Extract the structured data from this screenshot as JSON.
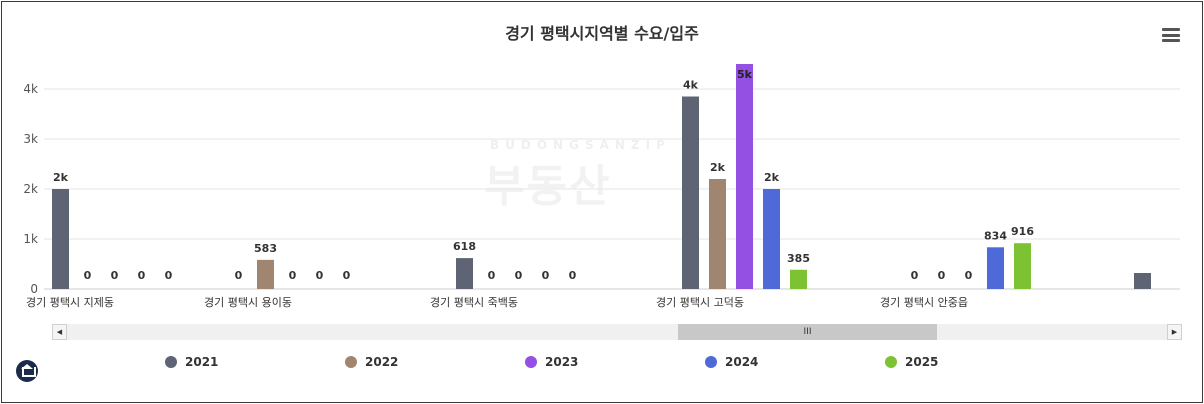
{
  "chart_data": {
    "type": "bar",
    "title": "경기 평택시지역별 수요/입주",
    "xlabel": "",
    "ylabel": "",
    "ylim": [
      0,
      4500
    ],
    "yticks": [
      "0",
      "1k",
      "2k",
      "3k",
      "4k"
    ],
    "yticks_values": [
      0,
      1000,
      2000,
      3000,
      4000
    ],
    "grid": true,
    "legend_position": "bottom",
    "categories": [
      "경기 평택시 지제동",
      "경기 평택시 용이동",
      "경기 평택시 죽백동",
      "경기 평택시 고덕동",
      "경기 평택시 안중읍",
      ""
    ],
    "series": [
      {
        "name": "2021",
        "color": "#5f6475",
        "values": [
          2000,
          0,
          618,
          3850,
          0,
          320
        ],
        "labels": [
          "2k",
          "0",
          "618",
          "4k",
          "0",
          ""
        ]
      },
      {
        "name": "2022",
        "color": "#a08670",
        "values": [
          0,
          583,
          0,
          2200,
          0,
          null
        ],
        "labels": [
          "0",
          "583",
          "0",
          "2k",
          "0",
          ""
        ]
      },
      {
        "name": "2023",
        "color": "#9350e3",
        "values": [
          0,
          0,
          0,
          4500,
          0,
          null
        ],
        "labels": [
          "0",
          "0",
          "0",
          "5k",
          "0",
          ""
        ]
      },
      {
        "name": "2024",
        "color": "#4d6ad8",
        "values": [
          0,
          0,
          0,
          2000,
          834,
          null
        ],
        "labels": [
          "0",
          "0",
          "0",
          "2k",
          "834",
          ""
        ]
      },
      {
        "name": "2025",
        "color": "#7dc232",
        "values": [
          0,
          0,
          0,
          385,
          916,
          null
        ],
        "labels": [
          "0",
          "0",
          "0",
          "385",
          "916",
          ""
        ]
      }
    ]
  },
  "watermark": {
    "top": "BUDONGSANZIP",
    "main": "부동산"
  },
  "scrollbar": {
    "thumb_label": "III",
    "left_arrow": "◀",
    "right_arrow": "▶"
  },
  "menu": {
    "icon": "hamburger-menu-icon"
  },
  "logo": {
    "icon": "home-logo-icon"
  }
}
